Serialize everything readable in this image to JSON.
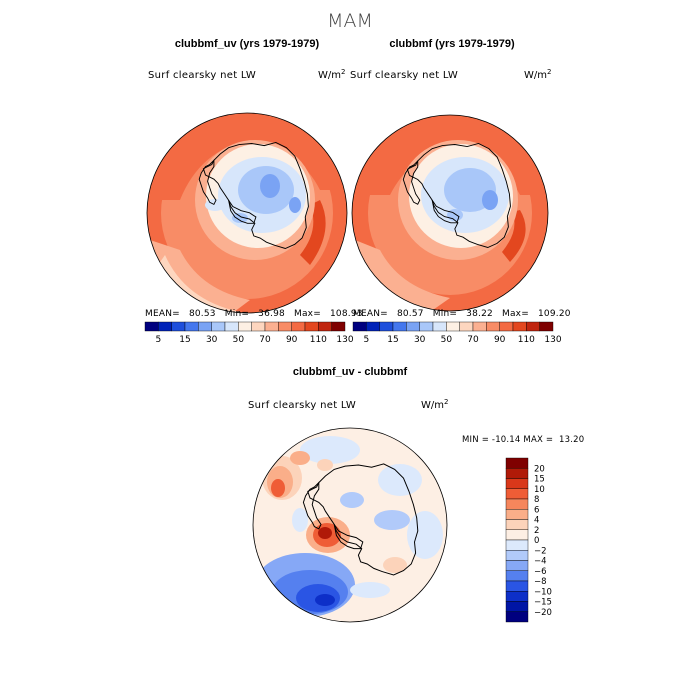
{
  "chart_data": {
    "type": "heatmap",
    "title": "MAM",
    "colors": {
      "abs_scale": [
        "#00007f",
        "#0022b8",
        "#1e4fdc",
        "#4477ee",
        "#7aa3f4",
        "#a9c7f9",
        "#d7e6fb",
        "#fdf0e4",
        "#fdd6bf",
        "#fbb091",
        "#f88c66",
        "#f36a43",
        "#e3471f",
        "#c0250f",
        "#7f0000"
      ],
      "diff_scale": [
        "#00007f",
        "#0015a5",
        "#0d2fc8",
        "#2a55e4",
        "#5580ef",
        "#86a8f6",
        "#b1cafa",
        "#dce9fc",
        "#fdefe4",
        "#fcd3ba",
        "#faae89",
        "#f6865c",
        "#ef5d36",
        "#d9381a",
        "#b01a08",
        "#7f0000"
      ],
      "land_outline": "#000000",
      "frame": "#000000"
    },
    "panels": [
      {
        "name": "clubbmf_uv",
        "title": "clubbmf_uv (yrs 1979-1979)",
        "variable": "Surf clearsky net LW",
        "units": "W/m",
        "units_exp": "2",
        "stats": {
          "mean_label": "MEAN=",
          "mean": "80.53",
          "min_label": "Min=",
          "min": "36.98",
          "max_label": "Max=",
          "max": "108.93"
        },
        "ticks": [
          "5",
          "15",
          "30",
          "50",
          "70",
          "90",
          "110",
          "130"
        ]
      },
      {
        "name": "clubbmf",
        "title": "clubbmf (yrs 1979-1979)",
        "variable": "Surf clearsky net LW",
        "units": "W/m",
        "units_exp": "2",
        "stats": {
          "mean_label": "MEAN=",
          "mean": "80.57",
          "min_label": "Min=",
          "min": "38.22",
          "max_label": "Max=",
          "max": "109.20"
        },
        "ticks": [
          "5",
          "15",
          "30",
          "50",
          "70",
          "90",
          "110",
          "130"
        ]
      },
      {
        "name": "difference",
        "title": "clubbmf_uv - clubbmf",
        "variable": "Surf clearsky net LW",
        "units": "W/m",
        "units_exp": "2",
        "minmax_text": "MIN = -10.14 MAX =  13.20",
        "ticks": [
          "20",
          "15",
          "10",
          "8",
          "6",
          "4",
          "2",
          "0",
          "-2",
          "-4",
          "-6",
          "-8",
          "-10",
          "-15",
          "-20"
        ]
      }
    ]
  }
}
